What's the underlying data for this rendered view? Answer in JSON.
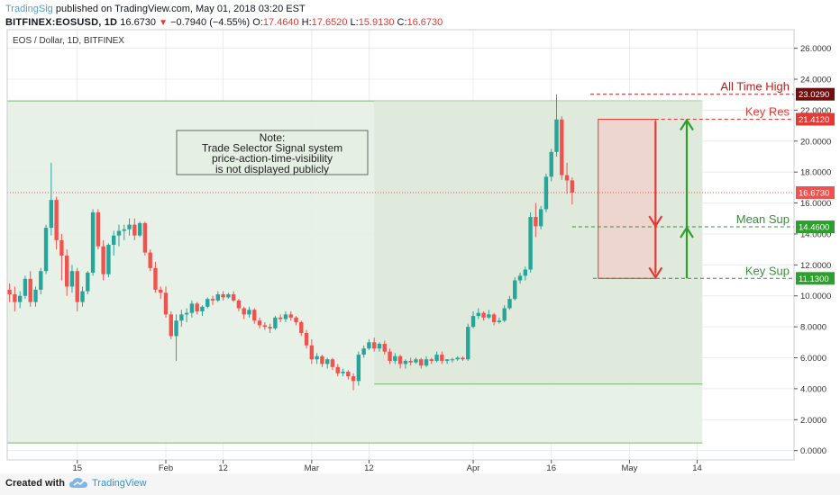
{
  "header": {
    "author": "TradingSig",
    "published_text": "published on TradingView.com, May 01, 2018 03:20 EST",
    "symbol": "BITFINEX:EOSUSD, 1D",
    "last": "16.6730",
    "change": "−0.7940 (−4.55%)",
    "open_label": "O:",
    "open": "17.4640",
    "high_label": "H:",
    "high": "17.6520",
    "low_label": "L:",
    "low": "15.9130",
    "close_label": "C:",
    "close": "16.6730"
  },
  "footer": {
    "created_with": "Created with",
    "brand": "TradingView"
  },
  "chart_data": {
    "type": "candlestick",
    "title": "EOS / Dollar, 1D, BITFINEX",
    "ylim": [
      -0.6,
      27.2
    ],
    "y_ticks": [
      "0.0000",
      "2.0000",
      "4.0000",
      "6.0000",
      "8.0000",
      "10.0000",
      "12.0000",
      "14.0000",
      "16.0000",
      "18.0000",
      "20.0000",
      "22.0000",
      "24.0000",
      "26.0000"
    ],
    "x_ticks": [
      {
        "label": "15",
        "day": 13
      },
      {
        "label": "Feb",
        "day": 30
      },
      {
        "label": "12",
        "day": 41
      },
      {
        "label": "Mar",
        "day": 58
      },
      {
        "label": "12",
        "day": 69
      },
      {
        "label": "Apr",
        "day": 89
      },
      {
        "label": "16",
        "day": 104
      },
      {
        "label": "May",
        "day": 119
      },
      {
        "label": "14",
        "day": 132
      }
    ],
    "grid": true,
    "candles": [
      [
        10.4,
        10.8,
        9.6,
        10.1
      ],
      [
        10.1,
        10.6,
        9.0,
        9.6
      ],
      [
        9.6,
        10.3,
        9.2,
        10.0
      ],
      [
        10.0,
        11.3,
        9.8,
        11.1
      ],
      [
        11.1,
        11.6,
        9.3,
        9.6
      ],
      [
        9.6,
        10.6,
        9.3,
        10.4
      ],
      [
        10.4,
        11.8,
        10.1,
        11.6
      ],
      [
        11.6,
        14.6,
        11.4,
        14.4
      ],
      [
        14.4,
        18.6,
        13.9,
        16.2
      ],
      [
        16.2,
        16.4,
        13.0,
        13.6
      ],
      [
        13.6,
        14.0,
        11.0,
        12.6
      ],
      [
        12.6,
        13.0,
        10.0,
        10.6
      ],
      [
        10.6,
        12.0,
        10.2,
        11.6
      ],
      [
        11.6,
        11.8,
        9.0,
        9.6
      ],
      [
        9.6,
        10.6,
        9.3,
        10.3
      ],
      [
        10.3,
        11.6,
        10.1,
        11.5
      ],
      [
        11.5,
        15.6,
        11.3,
        15.4
      ],
      [
        15.4,
        15.6,
        13.0,
        13.2
      ],
      [
        13.2,
        13.6,
        11.0,
        11.4
      ],
      [
        11.4,
        13.4,
        11.2,
        13.3
      ],
      [
        13.3,
        14.2,
        12.6,
        13.9
      ],
      [
        13.9,
        14.6,
        13.2,
        14.2
      ],
      [
        14.2,
        14.6,
        13.6,
        14.3
      ],
      [
        14.3,
        15.0,
        13.9,
        14.6
      ],
      [
        14.6,
        15.0,
        13.6,
        13.9
      ],
      [
        13.9,
        14.8,
        13.8,
        14.7
      ],
      [
        14.7,
        14.8,
        12.6,
        12.8
      ],
      [
        12.8,
        13.0,
        11.6,
        11.8
      ],
      [
        11.8,
        12.2,
        10.2,
        10.4
      ],
      [
        10.4,
        10.6,
        9.8,
        10.2
      ],
      [
        10.2,
        10.6,
        8.6,
        8.8
      ],
      [
        8.8,
        9.0,
        7.2,
        7.4
      ],
      [
        7.4,
        8.8,
        5.8,
        8.4
      ],
      [
        8.4,
        9.1,
        8.0,
        8.8
      ],
      [
        8.8,
        9.2,
        8.3,
        8.9
      ],
      [
        8.9,
        9.7,
        8.6,
        9.5
      ],
      [
        9.5,
        9.6,
        8.8,
        9.0
      ],
      [
        9.0,
        9.4,
        8.7,
        9.3
      ],
      [
        9.3,
        9.9,
        9.2,
        9.8
      ],
      [
        9.8,
        10.0,
        9.4,
        9.7
      ],
      [
        9.7,
        10.3,
        9.6,
        10.1
      ],
      [
        10.1,
        10.3,
        9.7,
        9.9
      ],
      [
        9.9,
        10.2,
        9.8,
        10.1
      ],
      [
        10.1,
        10.3,
        9.6,
        9.7
      ],
      [
        9.7,
        9.8,
        9.0,
        9.2
      ],
      [
        9.2,
        9.3,
        8.5,
        8.8
      ],
      [
        8.8,
        9.3,
        8.6,
        9.1
      ],
      [
        9.1,
        9.2,
        8.2,
        8.4
      ],
      [
        8.4,
        8.6,
        7.9,
        8.1
      ],
      [
        8.1,
        8.3,
        7.8,
        8.0
      ],
      [
        8.0,
        8.2,
        7.6,
        7.9
      ],
      [
        7.9,
        8.7,
        7.8,
        8.6
      ],
      [
        8.6,
        8.8,
        8.3,
        8.5
      ],
      [
        8.5,
        9.0,
        8.3,
        8.8
      ],
      [
        8.8,
        9.0,
        8.4,
        8.6
      ],
      [
        8.6,
        8.7,
        8.1,
        8.3
      ],
      [
        8.3,
        8.4,
        7.4,
        7.6
      ],
      [
        7.6,
        7.8,
        6.6,
        6.8
      ],
      [
        6.8,
        7.2,
        5.6,
        5.9
      ],
      [
        5.9,
        6.3,
        5.6,
        6.1
      ],
      [
        6.1,
        6.2,
        5.4,
        5.6
      ],
      [
        5.6,
        6.0,
        5.3,
        5.9
      ],
      [
        5.9,
        6.0,
        5.2,
        5.4
      ],
      [
        5.4,
        5.6,
        4.8,
        5.0
      ],
      [
        5.0,
        5.3,
        4.8,
        5.1
      ],
      [
        5.1,
        5.2,
        4.6,
        4.8
      ],
      [
        4.8,
        5.0,
        3.9,
        4.5
      ],
      [
        4.5,
        6.4,
        4.2,
        6.2
      ],
      [
        6.2,
        6.8,
        6.0,
        6.6
      ],
      [
        6.6,
        7.2,
        6.5,
        7.0
      ],
      [
        7.0,
        7.3,
        6.4,
        6.6
      ],
      [
        6.6,
        7.0,
        6.4,
        6.9
      ],
      [
        6.9,
        7.1,
        6.2,
        6.4
      ],
      [
        6.4,
        6.6,
        5.6,
        5.8
      ],
      [
        5.8,
        6.3,
        5.6,
        6.1
      ],
      [
        6.1,
        6.2,
        5.3,
        5.6
      ],
      [
        5.6,
        5.9,
        5.3,
        5.8
      ],
      [
        5.8,
        6.0,
        5.5,
        5.7
      ],
      [
        5.7,
        6.0,
        5.6,
        5.9
      ],
      [
        5.9,
        6.0,
        5.3,
        5.5
      ],
      [
        5.5,
        6.1,
        5.4,
        5.9
      ],
      [
        5.9,
        6.0,
        5.6,
        5.8
      ],
      [
        5.8,
        6.4,
        5.7,
        6.2
      ],
      [
        6.2,
        6.4,
        5.6,
        5.8
      ],
      [
        5.8,
        5.9,
        5.6,
        5.9
      ],
      [
        5.9,
        6.0,
        5.7,
        5.9
      ],
      [
        5.9,
        6.1,
        5.8,
        6.0
      ],
      [
        6.0,
        6.1,
        5.8,
        5.9
      ],
      [
        5.9,
        8.2,
        5.8,
        8.0
      ],
      [
        8.0,
        9.0,
        7.9,
        8.7
      ],
      [
        8.7,
        9.2,
        8.5,
        8.9
      ],
      [
        8.9,
        9.0,
        8.4,
        8.6
      ],
      [
        8.6,
        9.1,
        8.5,
        8.8
      ],
      [
        8.8,
        8.9,
        8.1,
        8.3
      ],
      [
        8.3,
        8.6,
        8.2,
        8.4
      ],
      [
        8.4,
        9.4,
        8.3,
        9.2
      ],
      [
        9.2,
        10.0,
        9.1,
        9.8
      ],
      [
        9.8,
        11.2,
        9.7,
        11.0
      ],
      [
        11.0,
        11.5,
        10.8,
        11.3
      ],
      [
        11.3,
        11.9,
        11.0,
        11.7
      ],
      [
        11.7,
        15.4,
        11.5,
        15.1
      ],
      [
        15.1,
        16.0,
        13.8,
        14.5
      ],
      [
        14.5,
        15.8,
        14.3,
        15.6
      ],
      [
        15.6,
        17.9,
        15.4,
        17.7
      ],
      [
        17.7,
        19.5,
        17.4,
        19.3
      ],
      [
        19.3,
        23.03,
        19.0,
        21.4
      ],
      [
        21.4,
        21.6,
        17.5,
        17.8
      ],
      [
        17.8,
        18.6,
        16.6,
        17.46
      ],
      [
        17.464,
        17.652,
        15.913,
        16.673
      ]
    ],
    "lines": [
      {
        "label": "All Time High",
        "value": "23.0290",
        "y": 23.029
      },
      {
        "label": "Key Res",
        "value": "21.4120",
        "y": 21.412
      },
      {
        "label": "Mean Sup",
        "value": "14.4600",
        "y": 14.46
      },
      {
        "label": "Key Sup",
        "value": "11.1300",
        "y": 11.13
      }
    ],
    "current_price": {
      "value": "16.6730",
      "y": 16.673
    },
    "range_box": {
      "top": 22.6,
      "bottom": 0.5,
      "start_day": 0,
      "end_day": 133
    },
    "inner_box": {
      "top": 22.6,
      "bottom": 4.3,
      "start_day": 70,
      "end_day": 133
    },
    "target_box": {
      "top": 21.412,
      "bottom": 11.13,
      "start_day": 113,
      "end_day": 124
    },
    "note": {
      "title": "Note:",
      "lines": [
        "Trade Selector Signal system",
        "price-action-time-visibility",
        "is not displayed publicly"
      ]
    },
    "colors": {
      "up": "#26a69a",
      "down": "#ef5350",
      "grid": "#e8ecef",
      "box": "#e6efe4",
      "box_line": "#7cb36b",
      "inner": "#dce8d9",
      "target": "#eed6d0",
      "target_line": "#e53935",
      "current": "#ef5350"
    }
  }
}
